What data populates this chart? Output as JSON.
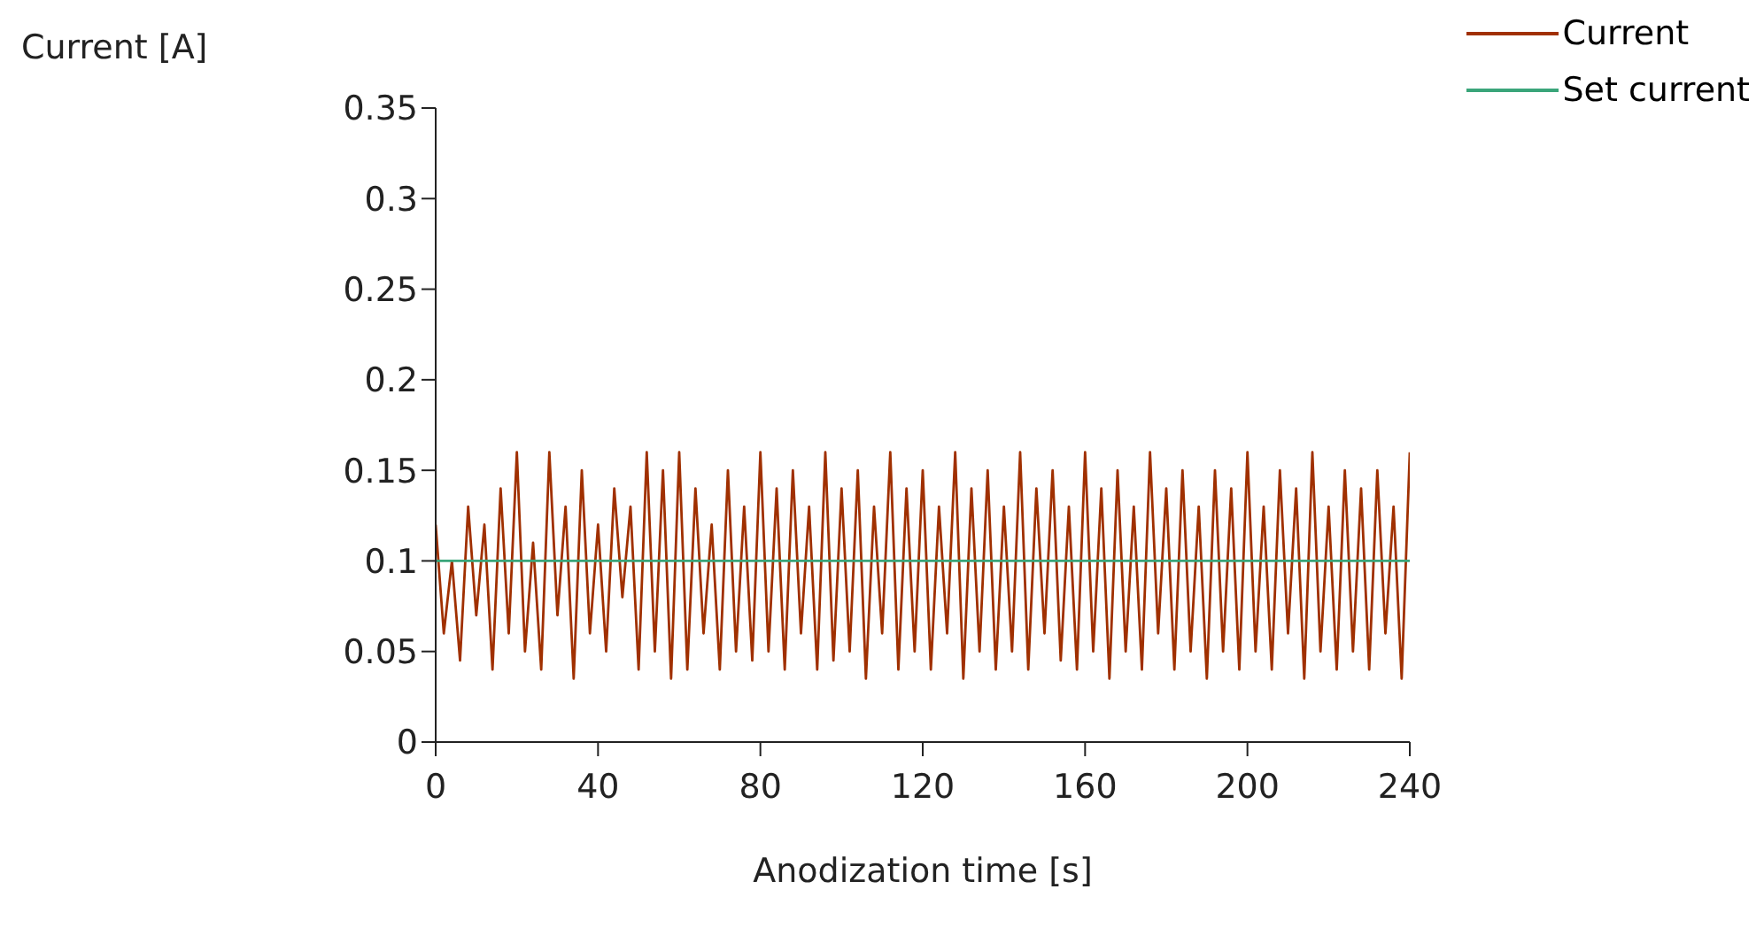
{
  "chart_data": {
    "type": "line",
    "xlabel": "Anodization time [s]",
    "ylabel": "Current [A]",
    "xlim": [
      0,
      240
    ],
    "xticks": [
      0,
      40,
      80,
      120,
      160,
      200,
      240
    ],
    "ylim": [
      0,
      0.35
    ],
    "yticks": [
      0,
      0.05,
      0.1,
      0.15,
      0.2,
      0.25,
      0.3,
      0.35
    ],
    "grid": false,
    "legend": "top right",
    "marker": "none",
    "series": [
      {
        "name": "Current",
        "color": "#a03000",
        "x": [
          0,
          2,
          4,
          6,
          8,
          10,
          12,
          14,
          16,
          18,
          20,
          22,
          24,
          26,
          28,
          30,
          32,
          34,
          36,
          38,
          40,
          42,
          44,
          46,
          48,
          50,
          52,
          54,
          56,
          58,
          60,
          62,
          64,
          66,
          68,
          70,
          72,
          74,
          76,
          78,
          80,
          82,
          84,
          86,
          88,
          90,
          92,
          94,
          96,
          98,
          100,
          102,
          104,
          106,
          108,
          110,
          112,
          114,
          116,
          118,
          120,
          122,
          124,
          126,
          128,
          130,
          132,
          134,
          136,
          138,
          140,
          142,
          144,
          146,
          148,
          150,
          152,
          154,
          156,
          158,
          160,
          162,
          164,
          166,
          168,
          170,
          172,
          174,
          176,
          178,
          180,
          182,
          184,
          186,
          188,
          190,
          192,
          194,
          196,
          198,
          200,
          202,
          204,
          206,
          208,
          210,
          212,
          214,
          216,
          218,
          220,
          222,
          224,
          226,
          228,
          230,
          232,
          234,
          236,
          238,
          240
        ],
        "values": [
          0.12,
          0.06,
          0.1,
          0.045,
          0.13,
          0.07,
          0.12,
          0.04,
          0.14,
          0.06,
          0.16,
          0.05,
          0.11,
          0.04,
          0.16,
          0.07,
          0.13,
          0.035,
          0.15,
          0.06,
          0.12,
          0.05,
          0.14,
          0.08,
          0.13,
          0.04,
          0.16,
          0.05,
          0.15,
          0.035,
          0.16,
          0.04,
          0.14,
          0.06,
          0.12,
          0.04,
          0.15,
          0.05,
          0.13,
          0.045,
          0.16,
          0.05,
          0.14,
          0.04,
          0.15,
          0.06,
          0.13,
          0.04,
          0.16,
          0.045,
          0.14,
          0.05,
          0.15,
          0.035,
          0.13,
          0.06,
          0.16,
          0.04,
          0.14,
          0.05,
          0.15,
          0.04,
          0.13,
          0.06,
          0.16,
          0.035,
          0.14,
          0.05,
          0.15,
          0.04,
          0.13,
          0.05,
          0.16,
          0.04,
          0.14,
          0.06,
          0.15,
          0.045,
          0.13,
          0.04,
          0.16,
          0.05,
          0.14,
          0.035,
          0.15,
          0.05,
          0.13,
          0.04,
          0.16,
          0.06,
          0.14,
          0.04,
          0.15,
          0.05,
          0.13,
          0.035,
          0.15,
          0.05,
          0.14,
          0.04,
          0.16,
          0.05,
          0.13,
          0.04,
          0.15,
          0.06,
          0.14,
          0.035,
          0.16,
          0.05,
          0.13,
          0.04,
          0.15,
          0.05,
          0.14,
          0.04,
          0.15,
          0.06,
          0.13,
          0.035,
          0.16
        ]
      },
      {
        "name": "Set current",
        "color": "#3aa57a",
        "x": [
          0,
          240
        ],
        "values": [
          0.1,
          0.1
        ]
      }
    ]
  }
}
